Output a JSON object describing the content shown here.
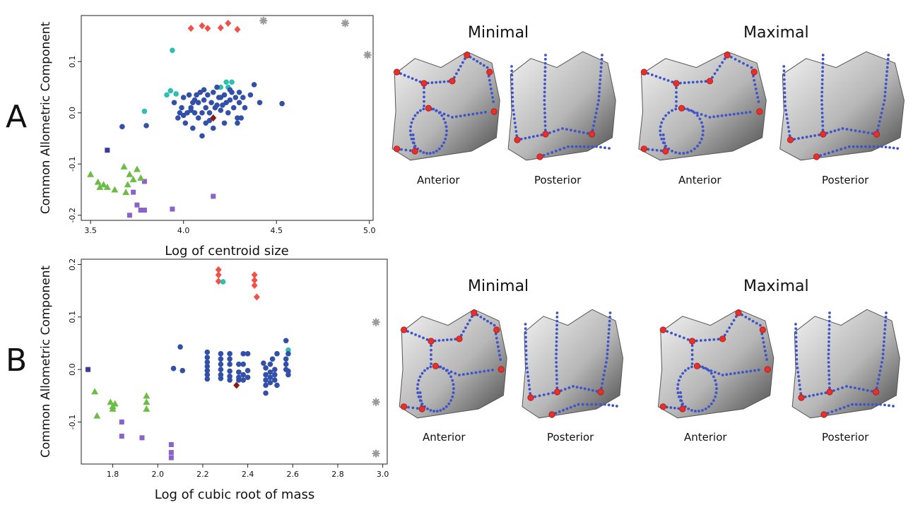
{
  "panels": {
    "a": {
      "letter": "A"
    },
    "b": {
      "letter": "B"
    }
  },
  "views": {
    "minimal": "Minimal",
    "maximal": "Maximal",
    "anterior": "Anterior",
    "posterior": "Posterior"
  },
  "colors": {
    "red_diamond": "#f0524a",
    "gray_star": "#9a9a9a",
    "teal_circle": "#2fbfb0",
    "blue_circle": "#3350a8",
    "dark_red_diamond": "#8b1a10",
    "dark_square": "#3a3a9c",
    "purple_square": "#8a63c8",
    "green_triangle": "#6bbd45",
    "bone_fill": "#b7b7b7",
    "landmark": "#e8302a",
    "curve": "#3e54c8"
  },
  "chart_data": [
    {
      "type": "scatter",
      "title": "",
      "xlabel": "Log of centroid size",
      "ylabel": "Common Allometric Component",
      "xlim": [
        3.45,
        5.02
      ],
      "ylim": [
        -0.21,
        0.19
      ],
      "xticks": [
        "3.5",
        "4.0",
        "4.5",
        "5.0"
      ],
      "yticks": [
        "-0.2",
        "-0.1",
        "0.0",
        "0.1"
      ],
      "xtick_values": [
        3.5,
        4.0,
        4.5,
        5.0
      ],
      "ytick_values": [
        -0.2,
        -0.1,
        0.0,
        0.1
      ],
      "grid": false,
      "series": [
        {
          "marker": "diamond",
          "color": "red_diamond",
          "points": [
            [
              4.04,
              0.165
            ],
            [
              4.1,
              0.17
            ],
            [
              4.13,
              0.165
            ],
            [
              4.2,
              0.166
            ],
            [
              4.24,
              0.175
            ],
            [
              4.29,
              0.163
            ]
          ]
        },
        {
          "marker": "star",
          "color": "gray_star",
          "points": [
            [
              4.43,
              0.18
            ],
            [
              4.87,
              0.175
            ],
            [
              4.99,
              0.113
            ]
          ]
        },
        {
          "marker": "circle",
          "color": "teal_circle",
          "points": [
            [
              3.94,
              0.122
            ],
            [
              3.91,
              0.035
            ],
            [
              3.93,
              0.043
            ],
            [
              3.96,
              0.037
            ],
            [
              3.79,
              0.003
            ],
            [
              4.2,
              0.05
            ],
            [
              4.23,
              0.06
            ],
            [
              4.26,
              0.06
            ],
            [
              4.24,
              0.05
            ]
          ]
        },
        {
          "marker": "circle",
          "color": "blue_circle",
          "points": [
            [
              3.67,
              -0.027
            ],
            [
              3.8,
              -0.025
            ],
            [
              3.95,
              0.02
            ],
            [
              3.97,
              -0.01
            ],
            [
              3.99,
              0.01
            ],
            [
              4.0,
              0.03
            ],
            [
              4.01,
              -0.02
            ],
            [
              4.02,
              0.0
            ],
            [
              4.03,
              0.035
            ],
            [
              4.04,
              0.01
            ],
            [
              4.05,
              -0.03
            ],
            [
              4.05,
              0.02
            ],
            [
              4.06,
              0.0
            ],
            [
              4.07,
              0.035
            ],
            [
              4.08,
              -0.01
            ],
            [
              4.08,
              0.02
            ],
            [
              4.09,
              0.04
            ],
            [
              4.1,
              0.0
            ],
            [
              4.1,
              -0.045
            ],
            [
              4.11,
              0.025
            ],
            [
              4.12,
              0.01
            ],
            [
              4.12,
              -0.02
            ],
            [
              4.13,
              0.035
            ],
            [
              4.14,
              0.0
            ],
            [
              4.15,
              0.02
            ],
            [
              4.16,
              -0.03
            ],
            [
              4.16,
              0.04
            ],
            [
              4.17,
              0.01
            ],
            [
              4.18,
              0.015
            ],
            [
              4.19,
              0.03
            ],
            [
              4.2,
              0.005
            ],
            [
              4.2,
              0.03
            ],
            [
              4.21,
              0.015
            ],
            [
              4.22,
              -0.02
            ],
            [
              4.22,
              0.035
            ],
            [
              4.23,
              0.02
            ],
            [
              4.24,
              0.0
            ],
            [
              4.25,
              0.025
            ],
            [
              4.26,
              0.04
            ],
            [
              4.27,
              0.01
            ],
            [
              4.28,
              0.03
            ],
            [
              4.29,
              -0.01
            ],
            [
              4.3,
              0.02
            ],
            [
              4.3,
              0.04
            ],
            [
              4.31,
              -0.01
            ],
            [
              4.32,
              0.03
            ],
            [
              4.33,
              0.01
            ],
            [
              4.36,
              0.035
            ],
            [
              4.38,
              0.055
            ],
            [
              4.41,
              0.02
            ],
            [
              4.53,
              0.018
            ],
            [
              4.04,
              0.005
            ],
            [
              4.0,
              -0.005
            ],
            [
              4.06,
              0.025
            ],
            [
              4.11,
              0.045
            ],
            [
              4.18,
              0.05
            ],
            [
              4.25,
              0.045
            ],
            [
              4.29,
              -0.02
            ],
            [
              3.98,
              0.0
            ],
            [
              4.14,
              -0.015
            ]
          ]
        },
        {
          "marker": "diamond",
          "color": "dark_red_diamond",
          "points": [
            [
              4.16,
              -0.01
            ]
          ]
        },
        {
          "marker": "square",
          "color": "dark_square",
          "points": [
            [
              3.59,
              -0.073
            ]
          ]
        },
        {
          "marker": "square",
          "color": "purple_square",
          "points": [
            [
              3.71,
              -0.2
            ],
            [
              3.73,
              -0.155
            ],
            [
              3.75,
              -0.18
            ],
            [
              3.77,
              -0.19
            ],
            [
              3.79,
              -0.19
            ],
            [
              3.94,
              -0.188
            ],
            [
              4.16,
              -0.163
            ],
            [
              3.79,
              -0.134
            ]
          ]
        },
        {
          "marker": "triangle",
          "color": "green_triangle",
          "points": [
            [
              3.5,
              -0.12
            ],
            [
              3.54,
              -0.135
            ],
            [
              3.55,
              -0.145
            ],
            [
              3.57,
              -0.14
            ],
            [
              3.59,
              -0.145
            ],
            [
              3.63,
              -0.15
            ],
            [
              3.68,
              -0.105
            ],
            [
              3.7,
              -0.14
            ],
            [
              3.71,
              -0.12
            ],
            [
              3.73,
              -0.13
            ],
            [
              3.75,
              -0.11
            ],
            [
              3.77,
              -0.127
            ],
            [
              3.69,
              -0.155
            ]
          ]
        }
      ]
    },
    {
      "type": "scatter",
      "title": "",
      "xlabel": "Log of cubic root of mass",
      "ylabel": "Common Allometric Component",
      "xlim": [
        1.66,
        3.02
      ],
      "ylim": [
        -0.18,
        0.21
      ],
      "xticks": [
        "1.8",
        "2.0",
        "2.2",
        "2.4",
        "2.6",
        "2.8",
        "3.0"
      ],
      "yticks": [
        "-0.1",
        "0.0",
        "0.1",
        "0.2"
      ],
      "xtick_values": [
        1.8,
        2.0,
        2.2,
        2.4,
        2.6,
        2.8,
        3.0
      ],
      "ytick_values": [
        -0.1,
        0.0,
        0.1,
        0.2
      ],
      "grid": false,
      "series": [
        {
          "marker": "diamond",
          "color": "red_diamond",
          "points": [
            [
              2.27,
              0.19
            ],
            [
              2.27,
              0.18
            ],
            [
              2.27,
              0.168
            ],
            [
              2.43,
              0.18
            ],
            [
              2.43,
              0.17
            ],
            [
              2.43,
              0.16
            ],
            [
              2.44,
              0.138
            ]
          ]
        },
        {
          "marker": "star",
          "color": "gray_star",
          "points": [
            [
              2.97,
              0.09
            ],
            [
              2.97,
              -0.062
            ],
            [
              2.97,
              -0.16
            ]
          ]
        },
        {
          "marker": "circle",
          "color": "teal_circle",
          "points": [
            [
              2.29,
              0.167
            ],
            [
              2.58,
              0.037
            ]
          ]
        },
        {
          "marker": "circle",
          "color": "blue_circle",
          "points": [
            [
              2.07,
              0.002
            ],
            [
              2.1,
              0.043
            ],
            [
              2.11,
              -0.002
            ],
            [
              2.22,
              0.033
            ],
            [
              2.22,
              0.023
            ],
            [
              2.22,
              0.014
            ],
            [
              2.22,
              0.006
            ],
            [
              2.22,
              -0.002
            ],
            [
              2.22,
              -0.01
            ],
            [
              2.22,
              -0.018
            ],
            [
              2.28,
              0.03
            ],
            [
              2.28,
              0.02
            ],
            [
              2.28,
              0.01
            ],
            [
              2.28,
              0.0
            ],
            [
              2.28,
              -0.01
            ],
            [
              2.28,
              -0.017
            ],
            [
              2.32,
              0.03
            ],
            [
              2.32,
              0.02
            ],
            [
              2.32,
              0.01
            ],
            [
              2.32,
              -0.003
            ],
            [
              2.32,
              -0.013
            ],
            [
              2.32,
              -0.02
            ],
            [
              2.36,
              0.01
            ],
            [
              2.36,
              -0.005
            ],
            [
              2.36,
              -0.015
            ],
            [
              2.36,
              -0.02
            ],
            [
              2.38,
              0.03
            ],
            [
              2.38,
              0.01
            ],
            [
              2.38,
              -0.01
            ],
            [
              2.38,
              -0.02
            ],
            [
              2.4,
              0.03
            ],
            [
              2.4,
              -0.002
            ],
            [
              2.4,
              -0.015
            ],
            [
              2.47,
              0.012
            ],
            [
              2.48,
              0.003
            ],
            [
              2.48,
              -0.01
            ],
            [
              2.48,
              -0.02
            ],
            [
              2.48,
              -0.03
            ],
            [
              2.48,
              -0.045
            ],
            [
              2.5,
              0.01
            ],
            [
              2.5,
              -0.005
            ],
            [
              2.5,
              -0.015
            ],
            [
              2.5,
              -0.025
            ],
            [
              2.51,
              0.02
            ],
            [
              2.52,
              0.0
            ],
            [
              2.52,
              -0.01
            ],
            [
              2.52,
              -0.02
            ],
            [
              2.53,
              0.03
            ],
            [
              2.53,
              -0.03
            ],
            [
              2.57,
              0.055
            ],
            [
              2.57,
              0.02
            ],
            [
              2.57,
              0.01
            ],
            [
              2.57,
              0.0
            ],
            [
              2.58,
              -0.01
            ],
            [
              2.58,
              0.03
            ],
            [
              2.58,
              -0.003
            ]
          ]
        },
        {
          "marker": "diamond",
          "color": "dark_red_diamond",
          "points": [
            [
              2.35,
              -0.03
            ]
          ]
        },
        {
          "marker": "square",
          "color": "dark_square",
          "points": [
            [
              1.69,
              0.0
            ]
          ]
        },
        {
          "marker": "square",
          "color": "purple_square",
          "points": [
            [
              1.84,
              -0.1
            ],
            [
              1.84,
              -0.127
            ],
            [
              1.93,
              -0.13
            ],
            [
              2.06,
              -0.143
            ],
            [
              2.06,
              -0.158
            ],
            [
              2.06,
              -0.168
            ]
          ]
        },
        {
          "marker": "triangle",
          "color": "green_triangle",
          "points": [
            [
              1.72,
              -0.042
            ],
            [
              1.73,
              -0.088
            ],
            [
              1.79,
              -0.062
            ],
            [
              1.8,
              -0.07
            ],
            [
              1.8,
              -0.075
            ],
            [
              1.81,
              -0.065
            ],
            [
              1.95,
              -0.05
            ],
            [
              1.95,
              -0.062
            ],
            [
              1.95,
              -0.075
            ]
          ]
        }
      ]
    }
  ]
}
